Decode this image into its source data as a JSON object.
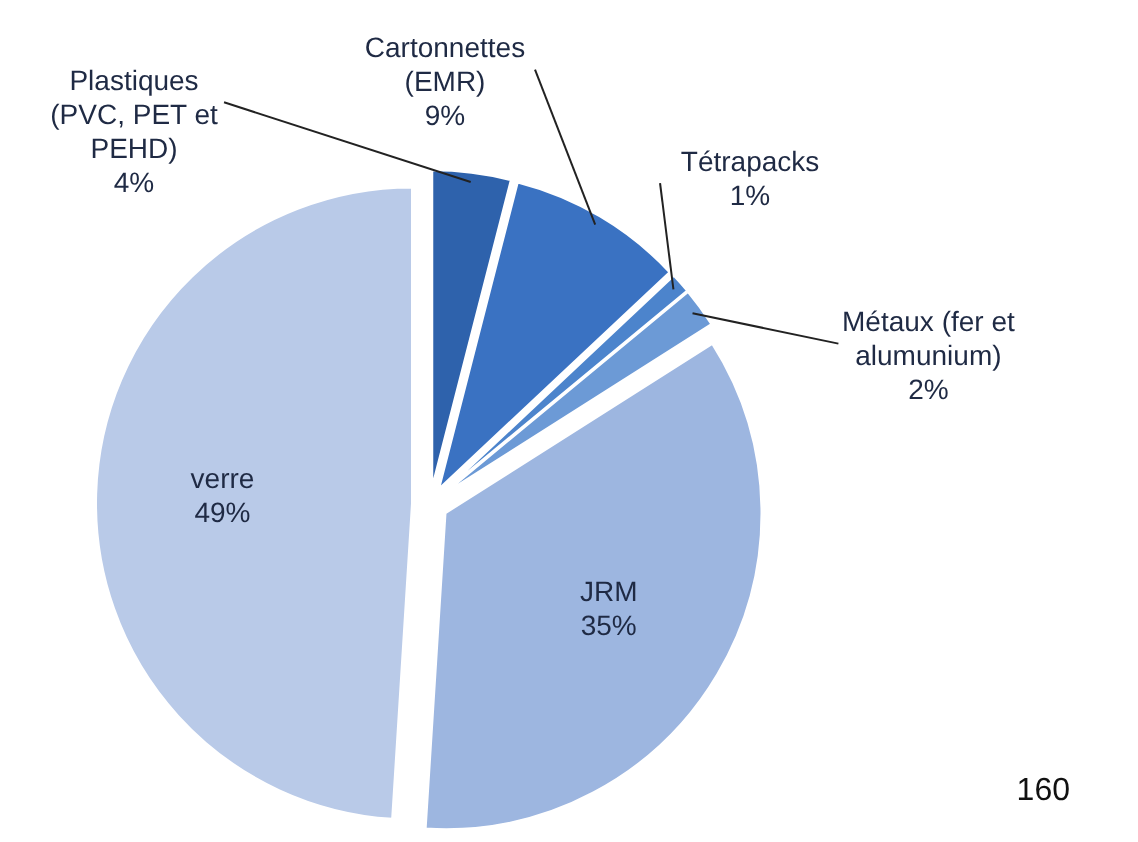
{
  "chart_data": {
    "type": "pie",
    "categories": [
      "Plastiques (PVC, PET et PEHD)",
      "Cartonnettes (EMR)",
      "Tétrapacks",
      "Métaux (fer et alumunium)",
      "JRM",
      "verre"
    ],
    "values": [
      4,
      9,
      1,
      2,
      35,
      49
    ],
    "value_labels": [
      "4%",
      "9%",
      "1%",
      "2%",
      "35%",
      "49%"
    ],
    "colors": [
      "#2e62ac",
      "#3a72c2",
      "#4c84cc",
      "#6c9ad6",
      "#9db6e0",
      "#b9cae8"
    ],
    "annotations": [
      "160"
    ]
  }
}
